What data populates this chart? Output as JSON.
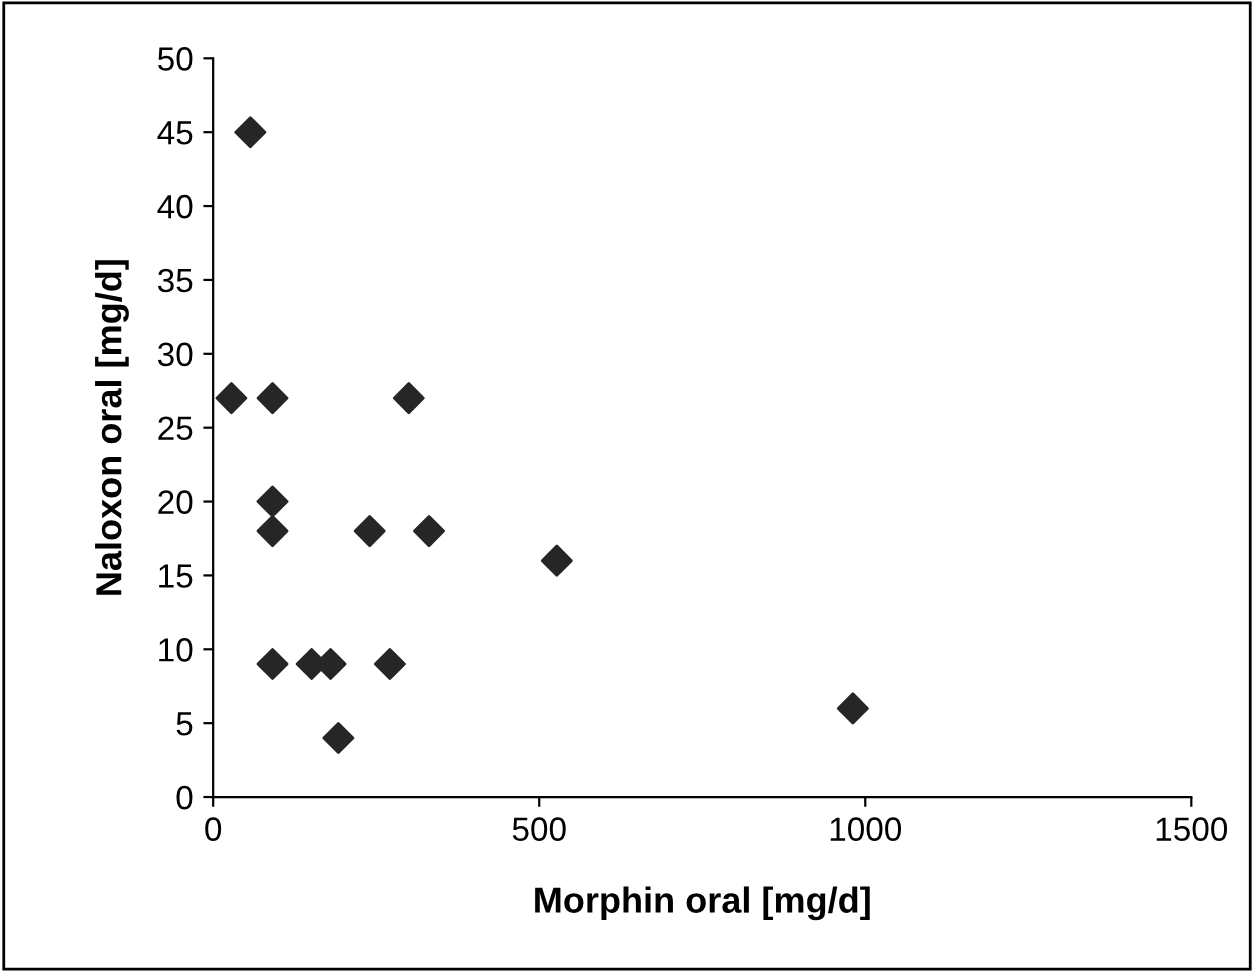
{
  "chart_data": {
    "type": "scatter",
    "xlabel": "Morphin oral [mg/d]",
    "ylabel": "Naloxon oral [mg/d]",
    "x": [
      28,
      57,
      91,
      91,
      91,
      91,
      151,
      180,
      192,
      240,
      271,
      300,
      331,
      527,
      981
    ],
    "values": [
      27,
      45,
      27,
      20,
      18,
      9,
      9,
      9,
      4,
      18,
      9,
      27,
      18,
      16,
      6
    ],
    "color": "#262626",
    "marker": "diamond",
    "xlim": [
      0,
      1500
    ],
    "xticks": [
      0,
      500,
      1000,
      1500
    ],
    "ylim": [
      0,
      50
    ],
    "yticks": [
      0,
      5,
      10,
      15,
      20,
      25,
      30,
      35,
      40,
      45,
      50
    ],
    "grid": false
  }
}
